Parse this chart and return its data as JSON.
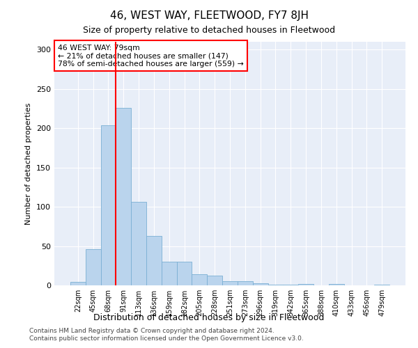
{
  "title": "46, WEST WAY, FLEETWOOD, FY7 8JH",
  "subtitle": "Size of property relative to detached houses in Fleetwood",
  "xlabel": "Distribution of detached houses by size in Fleetwood",
  "ylabel": "Number of detached properties",
  "bar_color": "#bad4ed",
  "bar_edge_color": "#7aafd4",
  "background_color": "#e8eef8",
  "categories": [
    "22sqm",
    "45sqm",
    "68sqm",
    "91sqm",
    "113sqm",
    "136sqm",
    "159sqm",
    "182sqm",
    "205sqm",
    "228sqm",
    "251sqm",
    "273sqm",
    "296sqm",
    "319sqm",
    "342sqm",
    "365sqm",
    "388sqm",
    "410sqm",
    "433sqm",
    "456sqm",
    "479sqm"
  ],
  "values": [
    4,
    46,
    204,
    226,
    106,
    63,
    30,
    30,
    14,
    12,
    5,
    5,
    3,
    1,
    1,
    2,
    0,
    2,
    0,
    0,
    1
  ],
  "ylim": [
    0,
    310
  ],
  "yticks": [
    0,
    50,
    100,
    150,
    200,
    250,
    300
  ],
  "red_line_x": 2.5,
  "annotation_line1": "46 WEST WAY: 79sqm",
  "annotation_line2": "← 21% of detached houses are smaller (147)",
  "annotation_line3": "78% of semi-detached houses are larger (559) →",
  "footer1": "Contains HM Land Registry data © Crown copyright and database right 2024.",
  "footer2": "Contains public sector information licensed under the Open Government Licence v3.0."
}
